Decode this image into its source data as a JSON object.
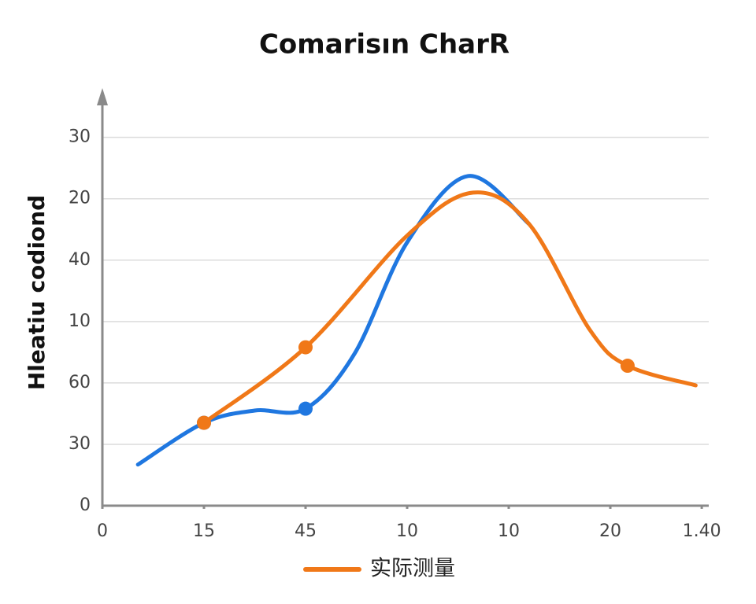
{
  "chart_data": {
    "type": "line",
    "title": "Comarisın CharR",
    "y_label": "Hleatiu codiond",
    "xlim": [
      0,
      6
    ],
    "ylim": [
      0,
      6.7
    ],
    "xticks": [
      0,
      {
        "value": 1,
        "label": "15"
      },
      {
        "value": 2,
        "label": "45"
      },
      {
        "value": 3,
        "label": "10"
      },
      {
        "value": 4,
        "label": "10"
      },
      {
        "value": 5,
        "label": "20"
      },
      {
        "value": 5.9,
        "label": "1.40"
      }
    ],
    "yticks": [
      0,
      {
        "value": 1,
        "label": "30"
      },
      {
        "value": 2,
        "label": "60"
      },
      {
        "value": 3,
        "label": "10"
      },
      {
        "value": 4,
        "label": "40"
      },
      {
        "value": 5,
        "label": "20"
      },
      {
        "value": 6,
        "label": "30"
      }
    ],
    "grid": true,
    "series": [
      {
        "color": "#1f77e0",
        "x": [
          0.35,
          1,
          1.5,
          2,
          2.48,
          3,
          3.6,
          4.2
        ],
        "values": [
          0.67,
          1.35,
          1.55,
          1.58,
          2.47,
          4.29,
          5.37,
          4.59
        ],
        "marker_indices": [
          1,
          3
        ]
      },
      {
        "name": "实际测量",
        "color": "#f07818",
        "x": [
          1,
          2,
          3,
          3.65,
          4.2,
          4.8,
          5.17,
          5.84
        ],
        "values": [
          1.35,
          2.58,
          4.4,
          5.1,
          4.59,
          2.86,
          2.28,
          1.96
        ],
        "marker_indices": [
          0,
          1,
          6
        ]
      }
    ]
  }
}
